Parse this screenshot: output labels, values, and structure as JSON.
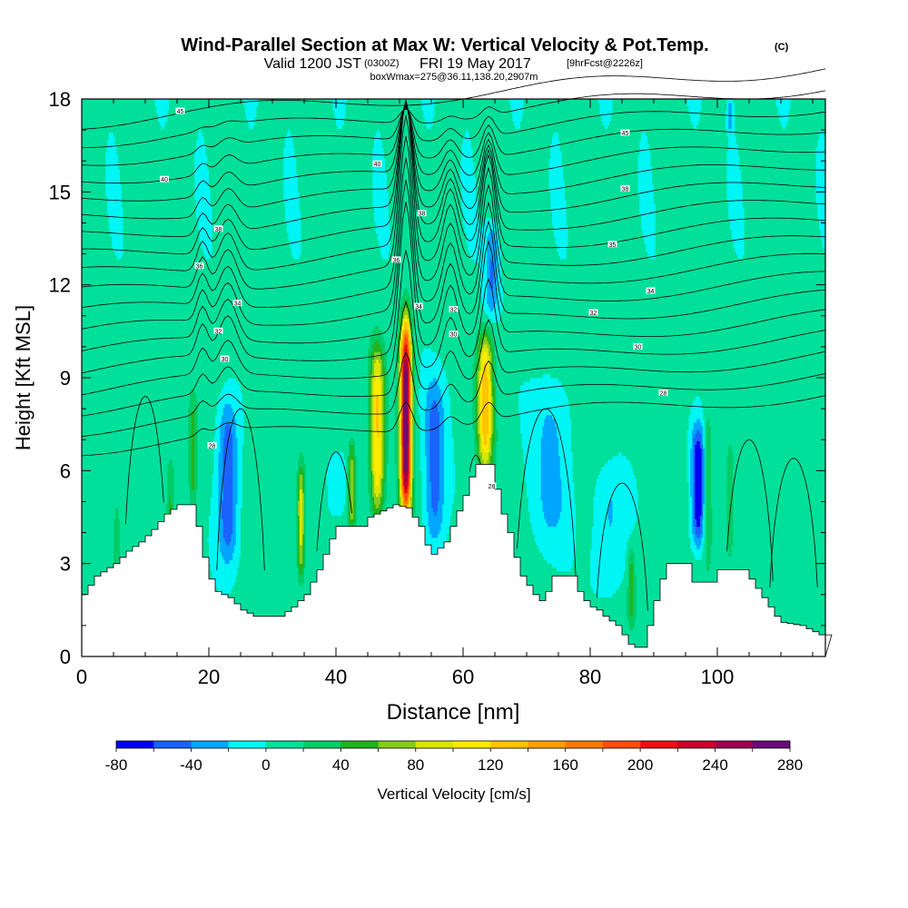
{
  "header": {
    "title_main": "Wind-Parallel Section at Max W: Vertical Velocity & Pot.Temp.",
    "title_mark": "(C)",
    "valid_prefix": "Valid 1200 JST",
    "valid_utc": "(0300Z)",
    "valid_date": "FRI 19 May 2017",
    "valid_fcst": "[9hrFcst@2226z]",
    "box_line": "boxWmax=275@36.11,138.20,2907m"
  },
  "chart_data": {
    "type": "contour",
    "xlabel": "Distance [nm]",
    "ylabel": "Height [Kft MSL]",
    "xlim": [
      0,
      117
    ],
    "ylim": [
      0,
      18
    ],
    "xticks": [
      0,
      20,
      40,
      60,
      80,
      100
    ],
    "yticks": [
      0,
      3,
      6,
      9,
      12,
      15,
      18
    ],
    "colorbar": {
      "label": "Vertical Velocity [cm/s]",
      "tick_labels": [
        "-80",
        "-40",
        "0",
        "40",
        "80",
        "120",
        "160",
        "200",
        "240",
        "280"
      ],
      "levels": [
        -80,
        -60,
        -40,
        -20,
        0,
        20,
        40,
        60,
        80,
        100,
        120,
        140,
        160,
        180,
        200,
        220,
        240,
        260,
        280
      ],
      "colors": [
        "#0000f0",
        "#1a63ff",
        "#00a6ff",
        "#00f5f5",
        "#00e09a",
        "#00cc66",
        "#22b31e",
        "#84cc1f",
        "#d8e600",
        "#ffea00",
        "#ffc400",
        "#ff9f00",
        "#ff7a00",
        "#ff4d10",
        "#ee1010",
        "#c8002a",
        "#9e0050",
        "#6a0a7a"
      ]
    },
    "terrain_kft": [
      [
        0,
        2.0
      ],
      [
        2,
        2.6
      ],
      [
        5,
        3.0
      ],
      [
        7,
        3.4
      ],
      [
        9,
        3.7
      ],
      [
        11,
        4.1
      ],
      [
        13,
        4.6
      ],
      [
        15,
        4.9
      ],
      [
        17,
        4.9
      ],
      [
        18,
        4.2
      ],
      [
        19,
        3.2
      ],
      [
        20,
        2.5
      ],
      [
        21,
        2.1
      ],
      [
        23,
        1.9
      ],
      [
        25,
        1.5
      ],
      [
        27,
        1.3
      ],
      [
        31,
        1.3
      ],
      [
        33,
        1.6
      ],
      [
        35,
        2.0
      ],
      [
        36,
        2.4
      ],
      [
        37,
        2.8
      ],
      [
        38,
        3.3
      ],
      [
        39,
        3.8
      ],
      [
        40,
        4.2
      ],
      [
        44,
        4.2
      ],
      [
        45,
        4.5
      ],
      [
        47,
        4.7
      ],
      [
        49,
        4.9
      ],
      [
        51,
        4.8
      ],
      [
        53,
        4.2
      ],
      [
        54,
        3.6
      ],
      [
        55,
        3.3
      ],
      [
        57,
        3.7
      ],
      [
        58,
        4.2
      ],
      [
        59,
        4.7
      ],
      [
        60,
        5.2
      ],
      [
        61,
        5.8
      ],
      [
        62,
        6.2
      ],
      [
        64,
        6.2
      ],
      [
        65,
        5.4
      ],
      [
        66,
        4.6
      ],
      [
        67,
        4.0
      ],
      [
        68,
        3.2
      ],
      [
        69,
        2.6
      ],
      [
        70,
        2.3
      ],
      [
        71,
        2.0
      ],
      [
        72,
        1.8
      ],
      [
        73,
        2.1
      ],
      [
        74,
        2.6
      ],
      [
        77,
        2.6
      ],
      [
        78,
        2.1
      ],
      [
        79,
        1.8
      ],
      [
        80,
        1.6
      ],
      [
        81,
        1.5
      ],
      [
        82,
        1.3
      ],
      [
        84,
        1.0
      ],
      [
        85,
        0.7
      ],
      [
        86,
        0.4
      ],
      [
        87,
        0.3
      ],
      [
        88,
        0.3
      ],
      [
        89,
        1.0
      ],
      [
        90,
        1.8
      ],
      [
        91,
        2.5
      ],
      [
        92,
        3.0
      ],
      [
        95,
        3.0
      ],
      [
        96,
        2.4
      ],
      [
        99,
        2.4
      ],
      [
        100,
        2.8
      ],
      [
        104,
        2.8
      ],
      [
        105,
        2.5
      ],
      [
        106,
        2.2
      ],
      [
        107,
        1.9
      ],
      [
        108,
        1.6
      ],
      [
        109,
        1.3
      ],
      [
        110,
        1.1
      ],
      [
        113,
        1.0
      ],
      [
        115,
        0.8
      ],
      [
        116,
        0.7
      ],
      [
        117,
        0.7
      ]
    ],
    "updrafts": [
      {
        "x": 51.0,
        "wx": 0.9,
        "z0": 4.5,
        "z1": 10.9,
        "vmax": 275
      },
      {
        "x": 46.5,
        "wx": 1.1,
        "z0": 4.5,
        "z1": 10.0,
        "vmax": 115
      },
      {
        "x": 63.5,
        "wx": 1.2,
        "z0": 6.0,
        "z1": 10.4,
        "vmax": 125
      },
      {
        "x": 34.5,
        "wx": 0.6,
        "z0": 2.5,
        "z1": 6.2,
        "vmax": 85
      },
      {
        "x": 42.5,
        "wx": 0.6,
        "z0": 4.0,
        "z1": 7.0,
        "vmax": 70
      },
      {
        "x": 17.5,
        "wx": 0.7,
        "z0": 4.5,
        "z1": 8.5,
        "vmax": 45
      },
      {
        "x": 14.0,
        "wx": 0.6,
        "z0": 3.5,
        "z1": 6.5,
        "vmax": 35
      },
      {
        "x": 5.5,
        "wx": 0.6,
        "z0": 2.5,
        "z1": 5.0,
        "vmax": 30
      },
      {
        "x": 98.5,
        "wx": 0.7,
        "z0": 3.0,
        "z1": 8.0,
        "vmax": 40
      },
      {
        "x": 102.0,
        "wx": 0.6,
        "z0": 3.0,
        "z1": 7.0,
        "vmax": 35
      },
      {
        "x": 86.5,
        "wx": 0.6,
        "z0": 1.0,
        "z1": 3.5,
        "vmax": 45
      }
    ],
    "downdrafts": [
      {
        "x": 23.0,
        "wx": 1.6,
        "z0": 3.0,
        "z1": 8.3,
        "vmin": -65
      },
      {
        "x": 55.5,
        "wx": 1.6,
        "z0": 3.5,
        "z1": 9.0,
        "vmin": -55
      },
      {
        "x": 97.0,
        "wx": 1.1,
        "z0": 3.5,
        "z1": 7.5,
        "vmin": -85
      },
      {
        "x": 74.0,
        "wx": 3.0,
        "z0": 3.5,
        "z1": 9.0,
        "vmin": -30
      },
      {
        "x": 83.0,
        "wx": 2.5,
        "z0": 2.0,
        "z1": 6.0,
        "vmin": -30
      },
      {
        "x": 64.5,
        "wx": 1.0,
        "z0": 11.0,
        "z1": 14.0,
        "vmin": -45
      },
      {
        "x": 40.0,
        "wx": 1.5,
        "z0": 4.5,
        "z1": 6.5,
        "vmin": -25
      },
      {
        "x": 102.0,
        "wx": 0.4,
        "z0": 17.0,
        "z1": 18.0,
        "vmin": -40
      }
    ],
    "theta_labels": [
      {
        "x": 15.5,
        "z": 17.6,
        "t": "45"
      },
      {
        "x": 85.5,
        "z": 16.9,
        "t": "45"
      },
      {
        "x": 46.5,
        "z": 15.9,
        "t": "40"
      },
      {
        "x": 13.0,
        "z": 15.4,
        "t": "40"
      },
      {
        "x": 85.5,
        "z": 15.1,
        "t": "38"
      },
      {
        "x": 53.5,
        "z": 14.3,
        "t": "38"
      },
      {
        "x": 21.5,
        "z": 13.8,
        "t": "38"
      },
      {
        "x": 83.5,
        "z": 13.3,
        "t": "35"
      },
      {
        "x": 49.5,
        "z": 12.8,
        "t": "36"
      },
      {
        "x": 18.5,
        "z": 12.6,
        "t": "36"
      },
      {
        "x": 89.5,
        "z": 11.8,
        "t": "34"
      },
      {
        "x": 24.5,
        "z": 11.4,
        "t": "34"
      },
      {
        "x": 53.0,
        "z": 11.3,
        "t": "34"
      },
      {
        "x": 58.5,
        "z": 11.2,
        "t": "32"
      },
      {
        "x": 80.5,
        "z": 11.1,
        "t": "32"
      },
      {
        "x": 21.5,
        "z": 10.5,
        "t": "32"
      },
      {
        "x": 58.5,
        "z": 10.4,
        "t": "30"
      },
      {
        "x": 87.5,
        "z": 10.0,
        "t": "30"
      },
      {
        "x": 22.5,
        "z": 9.6,
        "t": "30"
      },
      {
        "x": 91.5,
        "z": 8.5,
        "t": "28"
      },
      {
        "x": 20.5,
        "z": 6.8,
        "t": "28"
      },
      {
        "x": 64.5,
        "z": 5.5,
        "t": "28"
      }
    ]
  }
}
